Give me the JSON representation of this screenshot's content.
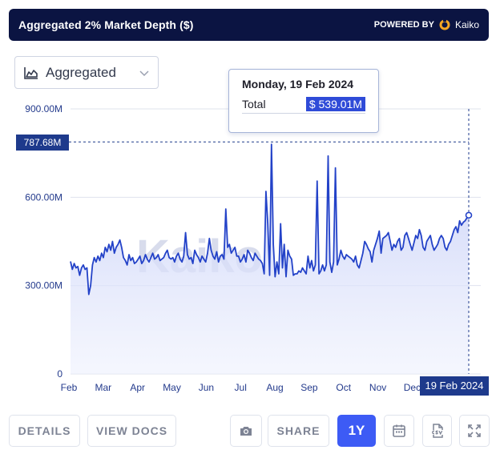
{
  "header": {
    "title": "Aggregated 2% Market Depth ($)",
    "powered_by": "POWERED BY",
    "brand": "Kaiko"
  },
  "dropdown": {
    "label": "Aggregated",
    "icon": "area-chart-icon"
  },
  "tooltip": {
    "date": "Monday, 19 Feb 2024",
    "key": "Total",
    "value": "$ 539.01M"
  },
  "crosshair": {
    "y_label": "787.68M",
    "x_label": "19 Feb 2024",
    "y_value": 787.68
  },
  "buttons": {
    "details": "DETAILS",
    "view_docs": "VIEW DOCS",
    "share": "SHARE",
    "range": "1Y"
  },
  "colors": {
    "header_bg": "#0b1442",
    "line": "#2342c8",
    "accent": "#3d5bf5",
    "fill_top": "#c3ccf7"
  },
  "chart_data": {
    "type": "area",
    "watermark": "Kaiko",
    "ylabel": "",
    "xlabel": "",
    "ylim": [
      0,
      900
    ],
    "y_ticks": [
      {
        "value": 0,
        "label": "0"
      },
      {
        "value": 300,
        "label": "300.00M"
      },
      {
        "value": 600,
        "label": "600.00M"
      },
      {
        "value": 900,
        "label": "900.00M"
      }
    ],
    "x_ticks": [
      "Feb",
      "Mar",
      "Apr",
      "May",
      "Jun",
      "Jul",
      "Aug",
      "Sep",
      "Oct",
      "Nov",
      "Dec"
    ],
    "series": [
      {
        "values": [
          382,
          355,
          375,
          360,
          365,
          335,
          360,
          370,
          355,
          360,
          270,
          300,
          370,
          395,
          380,
          400,
          385,
          410,
          395,
          430,
          415,
          440,
          420,
          450,
          410,
          430,
          440,
          455,
          430,
          395,
          385,
          370,
          405,
          385,
          395,
          375,
          380,
          390,
          400,
          375,
          385,
          405,
          390,
          380,
          395,
          410,
          390,
          395,
          405,
          385,
          390,
          395,
          410,
          420,
          395,
          390,
          395,
          380,
          400,
          410,
          390,
          380,
          400,
          480,
          405,
          390,
          395,
          375,
          420,
          405,
          395,
          380,
          400,
          390,
          380,
          410,
          460,
          420,
          400,
          390,
          415,
          380,
          400,
          405,
          390,
          560,
          430,
          440,
          410,
          420,
          430,
          400,
          400,
          380,
          390,
          405,
          380,
          420,
          410,
          395,
          385,
          410,
          400,
          390,
          385,
          375,
          340,
          620,
          510,
          335,
          780,
          440,
          330,
          380,
          340,
          510,
          360,
          440,
          330,
          420,
          400,
          390,
          335,
          340,
          340,
          350,
          345,
          360,
          350,
          340,
          400,
          360,
          385,
          350,
          370,
          655,
          340,
          350,
          370,
          350,
          370,
          740,
          380,
          345,
          380,
          700,
          370,
          390,
          420,
          400,
          390,
          405,
          400,
          395,
          390,
          380,
          400,
          370,
          360,
          385,
          410,
          450,
          440,
          425,
          415,
          380,
          420,
          440,
          460,
          485,
          410,
          460,
          465,
          470,
          480,
          450,
          420,
          440,
          430,
          450,
          460,
          420,
          430,
          470,
          480,
          460,
          440,
          420,
          445,
          470,
          460,
          490,
          470,
          430,
          420,
          450,
          460,
          470,
          440,
          420,
          430,
          440,
          460,
          470,
          460,
          430,
          420,
          440,
          450,
          470,
          490,
          500,
          480,
          520,
          505,
          515,
          520,
          530,
          539
        ]
      }
    ]
  }
}
